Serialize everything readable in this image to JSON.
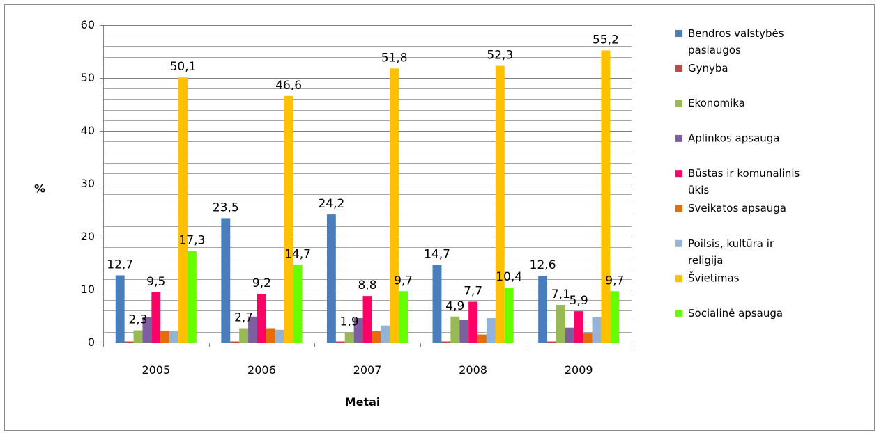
{
  "chart_data": {
    "type": "bar",
    "categories": [
      "2005",
      "2006",
      "2007",
      "2008",
      "2009"
    ],
    "xlabel": "Metai",
    "ylabel": "%",
    "ylim": [
      0,
      60
    ],
    "yticks": [
      0,
      10,
      20,
      30,
      40,
      50,
      60
    ],
    "minor_grid_step": 2,
    "grid": true,
    "legend_position": "right",
    "series": [
      {
        "name": "Bendros valstybės paslaugos",
        "color": "#4a7ebb",
        "values": [
          12.7,
          23.5,
          24.2,
          14.7,
          12.6
        ],
        "labels": [
          "12,7",
          "23,5",
          "24,2",
          "14,7",
          "12,6"
        ]
      },
      {
        "name": "Gynyba",
        "color": "#be4b48",
        "values": [
          0.2,
          0.2,
          0.2,
          0.2,
          0.2
        ],
        "labels": null
      },
      {
        "name": "Ekonomika",
        "color": "#98b954",
        "values": [
          2.3,
          2.7,
          1.9,
          4.9,
          7.1
        ],
        "labels": [
          "2,3",
          "2,7",
          "1,9",
          "4,9",
          "7,1"
        ]
      },
      {
        "name": "Aplinkos apsauga",
        "color": "#7d5fa0",
        "values": [
          4.8,
          4.9,
          4.6,
          4.3,
          2.8
        ],
        "labels": null
      },
      {
        "name": "Būstas ir komunalinis ūkis",
        "color": "#ff0066",
        "values": [
          9.5,
          9.2,
          8.8,
          7.7,
          5.9
        ],
        "labels": [
          "9,5",
          "9,2",
          "8,8",
          "7,7",
          "5,9"
        ]
      },
      {
        "name": "Sveikatos apsauga",
        "color": "#e46c0a",
        "values": [
          2.2,
          2.7,
          2.1,
          1.5,
          1.7
        ],
        "labels": null
      },
      {
        "name": "Poilsis, kultūra ir religija",
        "color": "#95b3d7",
        "values": [
          2.2,
          2.4,
          3.2,
          4.6,
          4.8
        ],
        "labels": null
      },
      {
        "name": "Švietimas",
        "color": "#ffc000",
        "values": [
          50.1,
          46.6,
          51.8,
          52.3,
          55.2
        ],
        "labels": [
          "50,1",
          "46,6",
          "51,8",
          "52,3",
          "55,2"
        ]
      },
      {
        "name": "Socialinė apsauga",
        "color": "#66ff00",
        "values": [
          17.3,
          14.7,
          9.7,
          10.4,
          9.7
        ],
        "labels": [
          "17,3",
          "14,7",
          "9,7",
          "10,4",
          "9,7"
        ]
      }
    ]
  }
}
